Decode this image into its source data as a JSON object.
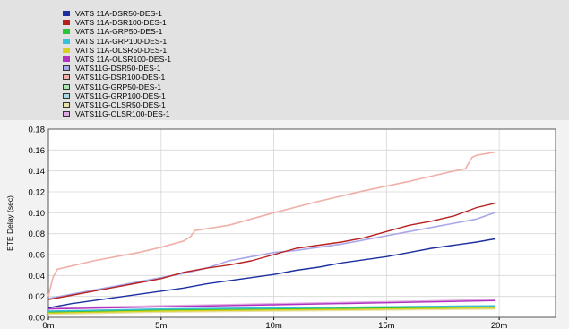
{
  "chart_data": {
    "type": "line",
    "ylabel": "ETE Delay (sec)",
    "xlabel": "",
    "ylim": [
      0,
      0.18
    ],
    "yticks": [
      "0.00",
      "0.02",
      "0.04",
      "0.06",
      "0.08",
      "0.10",
      "0.12",
      "0.14",
      "0.16",
      "0.18"
    ],
    "xlim": [
      0,
      22.5
    ],
    "xticks": [
      {
        "value": 0,
        "label": "0m"
      },
      {
        "value": 5,
        "label": "5m"
      },
      {
        "value": 10,
        "label": "10m"
      },
      {
        "value": 15,
        "label": "15m"
      },
      {
        "value": 20,
        "label": "20m"
      }
    ],
    "grid": true,
    "legend_placement": "top-left",
    "series": [
      {
        "name": "VATS 11A-DSR50-DES-1",
        "color": "#1c2fa0",
        "legend_hollow": false,
        "x": [
          0,
          1,
          2,
          3,
          4,
          5,
          6,
          7,
          8,
          9,
          10,
          11,
          12,
          13,
          14,
          15,
          16,
          17,
          18,
          19,
          19.8
        ],
        "y": [
          0.009,
          0.013,
          0.016,
          0.019,
          0.022,
          0.025,
          0.028,
          0.032,
          0.035,
          0.038,
          0.041,
          0.045,
          0.048,
          0.052,
          0.055,
          0.058,
          0.062,
          0.066,
          0.069,
          0.072,
          0.075
        ]
      },
      {
        "name": "VATS 11A-DSR100-DES-1",
        "color": "#b82020",
        "legend_hollow": false,
        "x": [
          0,
          1,
          2,
          3,
          4,
          5,
          6,
          7,
          8,
          9,
          10,
          11,
          12,
          13,
          14,
          15,
          16,
          17,
          18,
          19,
          19.8
        ],
        "y": [
          0.017,
          0.021,
          0.025,
          0.029,
          0.033,
          0.037,
          0.043,
          0.047,
          0.05,
          0.054,
          0.06,
          0.066,
          0.069,
          0.072,
          0.076,
          0.082,
          0.088,
          0.092,
          0.097,
          0.105,
          0.109
        ]
      },
      {
        "name": "VATS 11A-GRP50-DES-1",
        "color": "#2ec43a",
        "legend_hollow": false,
        "x": [
          0,
          5,
          10,
          15,
          19.8
        ],
        "y": [
          0.005,
          0.007,
          0.008,
          0.009,
          0.01
        ]
      },
      {
        "name": "VATS 11A-GRP100-DES-1",
        "color": "#38c0d8",
        "legend_hollow": false,
        "x": [
          0,
          5,
          10,
          15,
          19.8
        ],
        "y": [
          0.006,
          0.008,
          0.009,
          0.01,
          0.011
        ]
      },
      {
        "name": "VATS 11A-OLSR50-DES-1",
        "color": "#d8d020",
        "legend_hollow": false,
        "x": [
          0,
          5,
          10,
          15,
          19.8
        ],
        "y": [
          0.004,
          0.006,
          0.007,
          0.008,
          0.009
        ]
      },
      {
        "name": "VATS 11A-OLSR100-DES-1",
        "color": "#b030c0",
        "legend_hollow": false,
        "x": [
          0,
          5,
          10,
          15,
          19.8
        ],
        "y": [
          0.008,
          0.01,
          0.012,
          0.014,
          0.016
        ]
      },
      {
        "name": "VATS11G-DSR50-DES-1",
        "color": "#a8a8e8",
        "legend_hollow": true,
        "x": [
          0,
          1,
          2,
          3,
          4,
          5,
          6,
          7,
          8,
          9,
          10,
          11,
          12,
          13,
          14,
          15,
          16,
          17,
          18,
          19,
          19.8
        ],
        "y": [
          0.018,
          0.022,
          0.026,
          0.03,
          0.034,
          0.038,
          0.042,
          0.047,
          0.054,
          0.058,
          0.062,
          0.064,
          0.067,
          0.07,
          0.074,
          0.078,
          0.082,
          0.086,
          0.09,
          0.094,
          0.1
        ]
      },
      {
        "name": "VATS11G-DSR100-DES-1",
        "color": "#f0b0a8",
        "legend_hollow": true,
        "x": [
          0,
          0.2,
          0.4,
          1,
          2,
          3,
          4,
          5,
          6,
          6.3,
          6.5,
          8,
          10,
          12,
          14,
          16,
          17,
          18,
          18.5,
          18.8,
          19,
          19.8
        ],
        "y": [
          0.02,
          0.038,
          0.046,
          0.049,
          0.054,
          0.058,
          0.062,
          0.067,
          0.073,
          0.077,
          0.083,
          0.088,
          0.1,
          0.111,
          0.121,
          0.13,
          0.135,
          0.14,
          0.142,
          0.153,
          0.155,
          0.158
        ]
      },
      {
        "name": "VATS11G-GRP50-DES-1",
        "color": "#a8e8b0",
        "legend_hollow": true,
        "x": [
          0,
          5,
          10,
          15,
          19.8
        ],
        "y": [
          0.004,
          0.006,
          0.007,
          0.008,
          0.009
        ]
      },
      {
        "name": "VATS11G-GRP100-DES-1",
        "color": "#a8d8e0",
        "legend_hollow": true,
        "x": [
          0,
          5,
          10,
          15,
          19.8
        ],
        "y": [
          0.006,
          0.008,
          0.009,
          0.01,
          0.011
        ]
      },
      {
        "name": "VATS11G-OLSR50-DES-1",
        "color": "#e8e0a8",
        "legend_hollow": true,
        "x": [
          0,
          5,
          10,
          15,
          19.8
        ],
        "y": [
          0.003,
          0.005,
          0.006,
          0.007,
          0.008
        ]
      },
      {
        "name": "VATS11G-OLSR100-DES-1",
        "color": "#e0a8e0",
        "legend_hollow": true,
        "x": [
          0,
          5,
          10,
          15,
          19.8
        ],
        "y": [
          0.009,
          0.011,
          0.013,
          0.015,
          0.017
        ]
      }
    ]
  }
}
